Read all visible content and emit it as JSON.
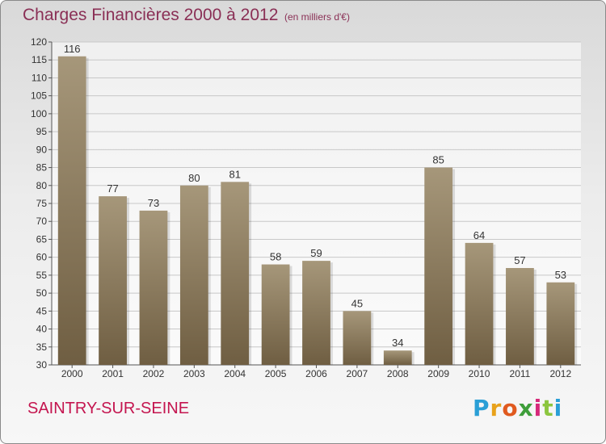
{
  "chart_data": {
    "type": "bar",
    "title": "Charges Financières 2000 à 2012",
    "subtitle": "(en milliers d'€)",
    "categories": [
      "2000",
      "2001",
      "2002",
      "2003",
      "2004",
      "2005",
      "2006",
      "2007",
      "2008",
      "2009",
      "2010",
      "2011",
      "2012"
    ],
    "values": [
      116,
      77,
      73,
      80,
      81,
      58,
      59,
      45,
      34,
      85,
      64,
      57,
      53
    ],
    "xlabel": "",
    "ylabel": "",
    "ylim": [
      30,
      120
    ],
    "yticks": [
      30,
      35,
      40,
      45,
      50,
      55,
      60,
      65,
      70,
      75,
      80,
      85,
      90,
      95,
      100,
      105,
      110,
      115,
      120
    ],
    "grid": true,
    "bar_color_top": "#a6977a",
    "bar_color_bottom": "#6f5e42"
  },
  "commune": "SAINTRY-SUR-SEINE",
  "logo": {
    "letters": [
      "P",
      "r",
      "o",
      "x",
      "i",
      "t",
      "i"
    ],
    "colors": [
      "#2a9fd6",
      "#e8a21b",
      "#e05a1f",
      "#3e9e3a",
      "#d62a7a",
      "#8cc63f",
      "#2a9fd6"
    ]
  }
}
